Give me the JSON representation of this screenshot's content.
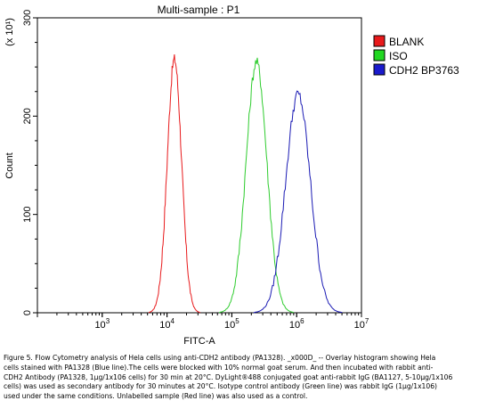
{
  "chart_data": {
    "type": "area",
    "title": "Multi-sample : P1",
    "xlabel": "FITC-A",
    "ylabel": "Count",
    "y_multiplier": "(x 10¹)",
    "x_scale": "log",
    "xlim": [
      100,
      10000000
    ],
    "ylim": [
      0,
      300
    ],
    "x_ticks": [
      {
        "value": 1000,
        "base": "10",
        "exp": "3"
      },
      {
        "value": 10000,
        "base": "10",
        "exp": "4"
      },
      {
        "value": 100000,
        "base": "10",
        "exp": "5"
      },
      {
        "value": 1000000,
        "base": "10",
        "exp": "6"
      },
      {
        "value": 10000000,
        "base": "10",
        "exp": "7"
      }
    ],
    "y_ticks": [
      {
        "value": 0,
        "label": "0"
      },
      {
        "value": 100,
        "label": "100"
      },
      {
        "value": 200,
        "label": "200"
      },
      {
        "value": 300,
        "label": "300"
      }
    ],
    "legend_position": "right",
    "series": [
      {
        "name": "BLANK",
        "color": "#e8191b",
        "fill": "#e8191b",
        "peak_x": 13000,
        "peak_y": 258,
        "sigma_log": 0.11
      },
      {
        "name": "ISO",
        "color": "#2ecc2e",
        "fill": "#22d822",
        "peak_x": 240000,
        "peak_y": 255,
        "sigma_log": 0.16
      },
      {
        "name": "CDH2 BP3763",
        "color": "#1a1ab4",
        "fill": "#1a1acc",
        "peak_x": 1050000,
        "peak_y": 222,
        "sigma_log": 0.19
      }
    ]
  },
  "caption": {
    "line1": "Figure 5. Flow Cytometry analysis of Hela cells using anti-CDH2 antibody (PA1328).  _x000D_ -- Overlay histogram showing Hela",
    "line2": "cells stained with PA1328 (Blue line).The cells were blocked with 10% normal goat serum. And then incubated with rabbit anti-",
    "line3": "CDH2 Antibody (PA1328, 1µg/1x106 cells) for 30 min at 20°C. DyLight®488 conjugated goat anti-rabbit IgG (BA1127, 5-10µg/1x106",
    "line4": "cells) was used as secondary antibody for 30 minutes at 20°C. Isotype control antibody (Green line) was rabbit IgG (1µg/1x106)",
    "line5": "used under the same conditions. Unlabelled sample (Red line) was also used as a control."
  }
}
